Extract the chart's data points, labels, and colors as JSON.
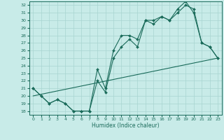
{
  "xlabel": "Humidex (Indice chaleur)",
  "bg_color": "#c8ebe8",
  "grid_color": "#a8d5d0",
  "line_color": "#1a6b5a",
  "xlim": [
    -0.5,
    23.5
  ],
  "ylim": [
    17.5,
    32.5
  ],
  "xticks": [
    0,
    1,
    2,
    3,
    4,
    5,
    6,
    7,
    8,
    9,
    10,
    11,
    12,
    13,
    14,
    15,
    16,
    17,
    18,
    19,
    20,
    21,
    22,
    23
  ],
  "yticks": [
    18,
    19,
    20,
    21,
    22,
    23,
    24,
    25,
    26,
    27,
    28,
    29,
    30,
    31,
    32
  ],
  "line1_x": [
    0,
    1,
    2,
    3,
    4,
    5,
    6,
    7,
    8,
    9,
    10,
    11,
    12,
    13,
    14,
    15,
    16,
    17,
    18,
    19,
    20,
    21,
    22,
    23
  ],
  "line1_y": [
    21,
    20,
    19,
    19.5,
    19,
    18,
    18,
    18,
    22,
    20.5,
    25,
    26.5,
    27.5,
    26.5,
    30,
    29.5,
    30.5,
    30,
    31,
    32,
    31.5,
    27,
    26.5,
    25
  ],
  "line2_x": [
    0,
    1,
    2,
    3,
    4,
    5,
    6,
    7,
    8,
    9,
    10,
    11,
    12,
    13,
    14,
    15,
    16,
    17,
    18,
    19,
    20,
    21,
    22,
    23
  ],
  "line2_y": [
    21,
    20,
    19,
    19.5,
    19,
    18,
    18,
    18,
    23.5,
    21,
    26,
    28,
    28,
    27.5,
    30,
    30,
    30.5,
    30,
    31.5,
    32.5,
    31,
    27,
    26.5,
    25
  ],
  "line3_x": [
    0,
    23
  ],
  "line3_y": [
    20,
    25
  ]
}
